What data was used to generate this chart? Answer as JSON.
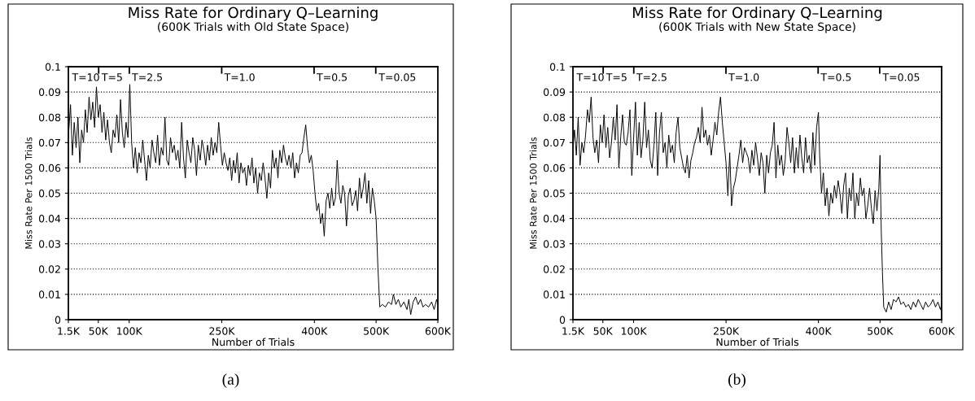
{
  "chart_data": [
    {
      "type": "line",
      "title": "Miss Rate for Ordinary Q–Learning",
      "subtitle": "(600K Trials with Old State Space)",
      "xlabel": "Number of Trials",
      "ylabel": "Miss Rate Per 1500 Trials",
      "x": [
        1.5,
        5,
        8,
        11,
        14,
        17,
        20,
        23,
        26,
        29,
        32,
        35,
        38,
        41,
        44,
        47,
        50,
        53,
        56,
        59,
        62,
        65,
        68,
        71,
        74,
        77,
        80,
        83,
        86,
        89,
        92,
        95,
        98,
        101,
        104,
        107,
        110,
        113,
        116,
        119,
        122,
        125,
        128,
        131,
        134,
        137,
        140,
        143,
        146,
        149,
        152,
        155,
        158,
        161,
        164,
        167,
        170,
        173,
        176,
        179,
        182,
        185,
        188,
        191,
        194,
        197,
        200,
        203,
        206,
        209,
        212,
        215,
        218,
        221,
        224,
        227,
        230,
        233,
        236,
        239,
        242,
        245,
        248,
        251,
        254,
        257,
        260,
        263,
        266,
        269,
        272,
        275,
        278,
        281,
        284,
        287,
        290,
        293,
        296,
        299,
        302,
        305,
        308,
        311,
        314,
        317,
        320,
        323,
        326,
        329,
        332,
        335,
        338,
        341,
        344,
        347,
        350,
        353,
        356,
        359,
        362,
        365,
        368,
        371,
        374,
        377,
        380,
        383,
        386,
        389,
        392,
        395,
        398,
        401,
        404,
        407,
        410,
        413,
        416,
        419,
        422,
        425,
        428,
        431,
        434,
        437,
        440,
        443,
        446,
        449,
        452,
        455,
        458,
        461,
        464,
        467,
        470,
        473,
        476,
        479,
        482,
        485,
        488,
        491,
        494,
        497,
        500,
        503,
        506,
        510,
        515,
        520,
        525,
        528,
        532,
        536,
        540,
        545,
        550,
        553,
        556,
        560,
        564,
        568,
        572,
        576,
        580,
        585,
        590,
        594,
        598,
        600
      ],
      "series": [
        {
          "color": "#000000",
          "values": [
            0.072,
            0.085,
            0.065,
            0.078,
            0.068,
            0.08,
            0.062,
            0.075,
            0.07,
            0.083,
            0.074,
            0.088,
            0.079,
            0.086,
            0.076,
            0.092,
            0.08,
            0.085,
            0.074,
            0.082,
            0.071,
            0.079,
            0.07,
            0.066,
            0.075,
            0.072,
            0.081,
            0.07,
            0.087,
            0.074,
            0.068,
            0.078,
            0.072,
            0.093,
            0.07,
            0.06,
            0.068,
            0.058,
            0.066,
            0.062,
            0.071,
            0.063,
            0.055,
            0.065,
            0.06,
            0.071,
            0.066,
            0.062,
            0.073,
            0.061,
            0.068,
            0.065,
            0.08,
            0.063,
            0.061,
            0.072,
            0.066,
            0.069,
            0.063,
            0.067,
            0.06,
            0.078,
            0.064,
            0.056,
            0.071,
            0.066,
            0.062,
            0.072,
            0.067,
            0.057,
            0.069,
            0.063,
            0.071,
            0.067,
            0.061,
            0.069,
            0.063,
            0.072,
            0.065,
            0.07,
            0.066,
            0.078,
            0.069,
            0.061,
            0.066,
            0.062,
            0.059,
            0.064,
            0.055,
            0.063,
            0.058,
            0.066,
            0.054,
            0.062,
            0.058,
            0.06,
            0.053,
            0.061,
            0.057,
            0.064,
            0.054,
            0.06,
            0.05,
            0.058,
            0.055,
            0.062,
            0.056,
            0.048,
            0.058,
            0.052,
            0.067,
            0.06,
            0.064,
            0.056,
            0.067,
            0.062,
            0.069,
            0.064,
            0.061,
            0.065,
            0.06,
            0.066,
            0.056,
            0.062,
            0.058,
            0.065,
            0.066,
            0.072,
            0.077,
            0.068,
            0.062,
            0.065,
            0.059,
            0.05,
            0.043,
            0.046,
            0.038,
            0.042,
            0.033,
            0.047,
            0.05,
            0.044,
            0.052,
            0.045,
            0.048,
            0.063,
            0.05,
            0.046,
            0.053,
            0.05,
            0.037,
            0.049,
            0.052,
            0.045,
            0.047,
            0.051,
            0.043,
            0.056,
            0.048,
            0.052,
            0.058,
            0.046,
            0.055,
            0.042,
            0.052,
            0.047,
            0.04,
            0.02,
            0.005,
            0.006,
            0.005,
            0.007,
            0.006,
            0.01,
            0.006,
            0.008,
            0.005,
            0.007,
            0.004,
            0.008,
            0.002,
            0.007,
            0.009,
            0.006,
            0.008,
            0.005,
            0.006,
            0.005,
            0.007,
            0.004,
            0.008,
            0.006
          ]
        }
      ],
      "xlim": [
        1.5,
        600
      ],
      "xticks": [
        {
          "value": 1.5,
          "label": "1.5K"
        },
        {
          "value": 50,
          "label": "50K"
        },
        {
          "value": 100,
          "label": "100K"
        },
        {
          "value": 250,
          "label": "250K"
        },
        {
          "value": 400,
          "label": "400K"
        },
        {
          "value": 500,
          "label": "500K"
        },
        {
          "value": 600,
          "label": "600K"
        }
      ],
      "ylim": [
        0,
        0.1
      ],
      "yticks": [
        0,
        0.01,
        0.02,
        0.03,
        0.04,
        0.05,
        0.06,
        0.07,
        0.08,
        0.09,
        0.1
      ],
      "grid": "y",
      "legend": false,
      "marker": "none",
      "line_style": "solid",
      "annotations": [
        "T=10",
        "T=5",
        "T=2.5",
        "T=1.0",
        "T=0.5",
        "T=0.05",
        "(a)"
      ]
    },
    {
      "type": "line",
      "title": "Miss Rate for Ordinary Q–Learning",
      "subtitle": "(600K Trials with New State Space)",
      "xlabel": "Number of Trials",
      "ylabel": "Miss Rate Per 1500 Trials",
      "x": [
        1.5,
        4,
        7,
        10,
        13,
        16,
        19,
        22,
        25,
        28,
        31,
        34,
        37,
        40,
        43,
        46,
        49,
        52,
        55,
        58,
        61,
        64,
        67,
        70,
        73,
        76,
        79,
        82,
        85,
        88,
        91,
        94,
        97,
        100,
        103,
        106,
        109,
        112,
        115,
        118,
        121,
        124,
        127,
        130,
        133,
        136,
        139,
        142,
        145,
        148,
        151,
        154,
        157,
        160,
        163,
        166,
        169,
        172,
        175,
        178,
        181,
        184,
        187,
        190,
        193,
        196,
        199,
        202,
        205,
        208,
        211,
        214,
        217,
        220,
        223,
        226,
        229,
        232,
        235,
        238,
        241,
        244,
        247,
        250,
        253,
        256,
        259,
        262,
        265,
        268,
        271,
        274,
        277,
        280,
        283,
        286,
        289,
        292,
        295,
        298,
        301,
        304,
        307,
        310,
        313,
        316,
        319,
        322,
        325,
        328,
        331,
        334,
        337,
        340,
        343,
        346,
        349,
        352,
        355,
        358,
        361,
        364,
        367,
        370,
        373,
        376,
        379,
        382,
        385,
        388,
        391,
        394,
        397,
        400,
        402,
        405,
        408,
        411,
        414,
        417,
        420,
        423,
        426,
        429,
        432,
        435,
        438,
        441,
        444,
        447,
        450,
        453,
        456,
        459,
        462,
        465,
        468,
        471,
        474,
        477,
        480,
        483,
        486,
        489,
        492,
        495,
        498,
        500,
        502,
        504,
        506,
        510,
        514,
        518,
        522,
        526,
        530,
        534,
        538,
        542,
        546,
        550,
        554,
        558,
        562,
        566,
        570,
        574,
        578,
        582,
        586,
        590,
        594,
        598,
        600
      ],
      "series": [
        {
          "color": "#000000",
          "values": [
            0.068,
            0.075,
            0.065,
            0.08,
            0.061,
            0.07,
            0.066,
            0.073,
            0.083,
            0.078,
            0.088,
            0.072,
            0.066,
            0.071,
            0.062,
            0.077,
            0.07,
            0.081,
            0.068,
            0.076,
            0.064,
            0.07,
            0.08,
            0.071,
            0.085,
            0.06,
            0.072,
            0.081,
            0.07,
            0.069,
            0.074,
            0.083,
            0.057,
            0.072,
            0.086,
            0.065,
            0.078,
            0.064,
            0.071,
            0.086,
            0.068,
            0.075,
            0.063,
            0.06,
            0.069,
            0.082,
            0.057,
            0.074,
            0.082,
            0.066,
            0.07,
            0.06,
            0.073,
            0.066,
            0.069,
            0.062,
            0.074,
            0.08,
            0.068,
            0.064,
            0.06,
            0.058,
            0.065,
            0.056,
            0.063,
            0.066,
            0.07,
            0.072,
            0.076,
            0.07,
            0.084,
            0.072,
            0.075,
            0.069,
            0.073,
            0.065,
            0.071,
            0.078,
            0.073,
            0.082,
            0.088,
            0.078,
            0.07,
            0.062,
            0.049,
            0.066,
            0.045,
            0.052,
            0.055,
            0.06,
            0.065,
            0.071,
            0.062,
            0.068,
            0.066,
            0.064,
            0.058,
            0.067,
            0.061,
            0.07,
            0.064,
            0.057,
            0.066,
            0.062,
            0.05,
            0.065,
            0.058,
            0.066,
            0.069,
            0.078,
            0.056,
            0.069,
            0.061,
            0.065,
            0.057,
            0.063,
            0.076,
            0.07,
            0.062,
            0.072,
            0.058,
            0.068,
            0.06,
            0.073,
            0.064,
            0.058,
            0.072,
            0.062,
            0.065,
            0.058,
            0.074,
            0.061,
            0.076,
            0.082,
            0.065,
            0.05,
            0.058,
            0.045,
            0.052,
            0.041,
            0.05,
            0.046,
            0.053,
            0.048,
            0.055,
            0.05,
            0.042,
            0.053,
            0.058,
            0.04,
            0.052,
            0.047,
            0.058,
            0.04,
            0.05,
            0.045,
            0.056,
            0.049,
            0.052,
            0.04,
            0.045,
            0.052,
            0.044,
            0.038,
            0.051,
            0.043,
            0.052,
            0.065,
            0.035,
            0.018,
            0.005,
            0.003,
            0.007,
            0.004,
            0.008,
            0.007,
            0.009,
            0.006,
            0.007,
            0.005,
            0.006,
            0.004,
            0.007,
            0.005,
            0.008,
            0.006,
            0.004,
            0.007,
            0.005,
            0.006,
            0.008,
            0.005,
            0.007,
            0.004,
            0.006
          ]
        }
      ],
      "xlim": [
        1.5,
        600
      ],
      "xticks": [
        {
          "value": 1.5,
          "label": "1.5K"
        },
        {
          "value": 50,
          "label": "50K"
        },
        {
          "value": 100,
          "label": "100K"
        },
        {
          "value": 250,
          "label": "250K"
        },
        {
          "value": 400,
          "label": "400K"
        },
        {
          "value": 500,
          "label": "500K"
        },
        {
          "value": 600,
          "label": "600K"
        }
      ],
      "ylim": [
        0,
        0.1
      ],
      "yticks": [
        0,
        0.01,
        0.02,
        0.03,
        0.04,
        0.05,
        0.06,
        0.07,
        0.08,
        0.09,
        0.1
      ],
      "grid": "y",
      "legend": false,
      "marker": "none",
      "line_style": "solid",
      "annotations": [
        "T=10",
        "T=5",
        "T=2.5",
        "T=1.0",
        "T=0.5",
        "T=0.05",
        "(b)"
      ]
    }
  ]
}
